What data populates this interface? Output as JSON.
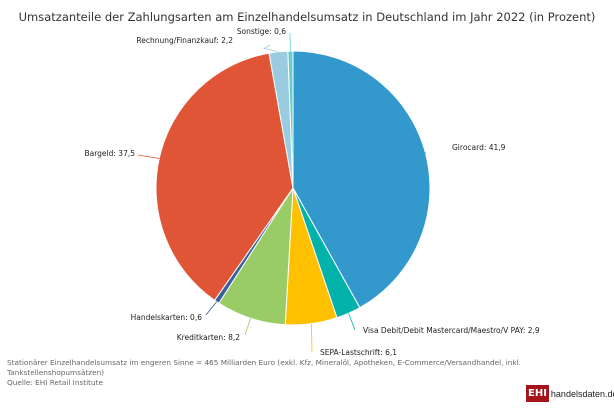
{
  "chart_data": {
    "type": "pie",
    "title": "Umsatzanteile der Zahlungsarten am Einzelhandelsumsatz in Deutschland im Jahr 2022 (in Prozent)",
    "start": "top",
    "direction": "clockwise",
    "slices": [
      {
        "label": "Girocard",
        "value": 41.9,
        "display": "41,9",
        "color": "#3399cc"
      },
      {
        "label": "Visa Debit/Debit Mastercard/Maestro/V PAY",
        "value": 2.9,
        "display": "2,9",
        "color": "#00b2a9"
      },
      {
        "label": "SEPA-Lastschrift",
        "value": 6.1,
        "display": "6,1",
        "color": "#ffc000"
      },
      {
        "label": "Kreditkarten",
        "value": 8.2,
        "display": "8,2",
        "color": "#99cc66"
      },
      {
        "label": "Handelskarten",
        "value": 0.6,
        "display": "0,6",
        "color": "#3a5f9a"
      },
      {
        "label": "Bargeld",
        "value": 37.5,
        "display": "37,5",
        "color": "#e05535"
      },
      {
        "label": "Rechnung/Finanzkauf",
        "value": 2.2,
        "display": "2,2",
        "color": "#99cce0"
      },
      {
        "label": "Sonstige",
        "value": 0.6,
        "display": "0,6",
        "color": "#66cccc"
      }
    ]
  },
  "footer": {
    "note": "Stationärer Einzelhandelsumsatz im engeren Sinne = 465 Milliarden Euro (exkl. Kfz, Mineralöl, Apotheken, E-Commerce/Versandhandel, inkl. Tankstellenshopumsätzen)",
    "source": "Quelle: EHI Retail Institute"
  },
  "logo": {
    "mark": "EHI",
    "site": "handelsdaten.de"
  }
}
